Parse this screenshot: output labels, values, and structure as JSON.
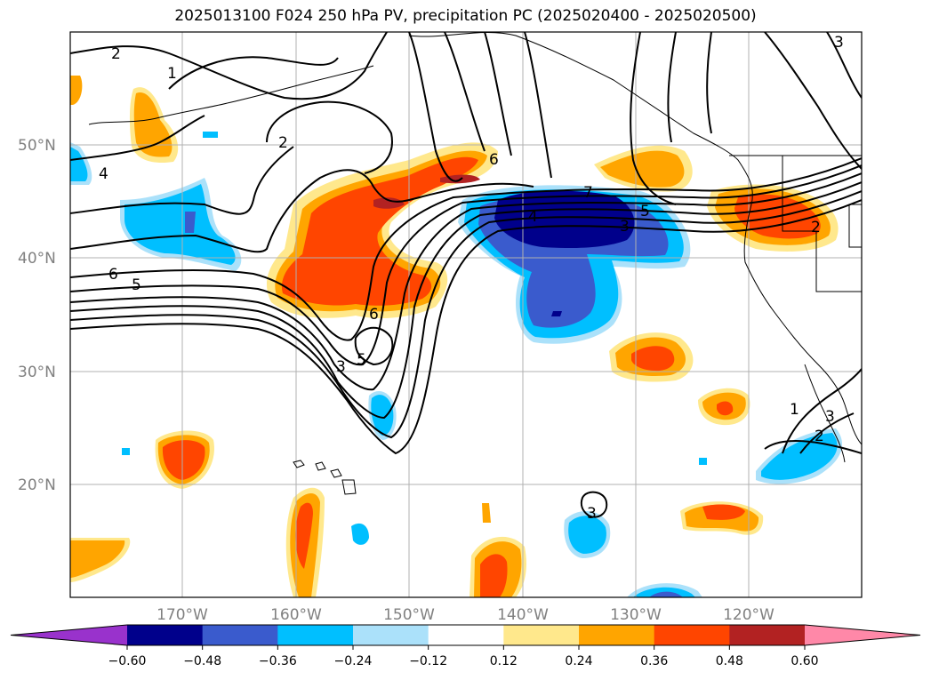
{
  "title": "2025013100 F024 250 hPa PV, precipitation PC (2025020400 - 2025020500)",
  "map": {
    "lat_labels": [
      "50°N",
      "40°N",
      "30°N",
      "20°N"
    ],
    "lon_labels": [
      "170°W",
      "160°W",
      "150°W",
      "140°W",
      "130°W",
      "120°W"
    ],
    "gridline_color": "#b0b0b0",
    "land_outline_color": "#000000",
    "contour_color": "#000000",
    "contour_labels": [
      "2",
      "1",
      "2",
      "4",
      "6",
      "5",
      "6",
      "5",
      "3",
      "6",
      "7",
      "4",
      "3",
      "5",
      "2",
      "3",
      "1",
      "3",
      "2",
      "3"
    ]
  },
  "colorbar": {
    "ticks": [
      "−0.60",
      "−0.48",
      "−0.36",
      "−0.24",
      "−0.12",
      "0.12",
      "0.24",
      "0.36",
      "0.48",
      "0.60"
    ],
    "colors": [
      "#9932cc",
      "#00008b",
      "#3a5bcd",
      "#00bfff",
      "#abe1fa",
      "#ffffff",
      "#ffe88c",
      "#ffa500",
      "#ff4500",
      "#b22222",
      "#ff88a8"
    ]
  }
}
